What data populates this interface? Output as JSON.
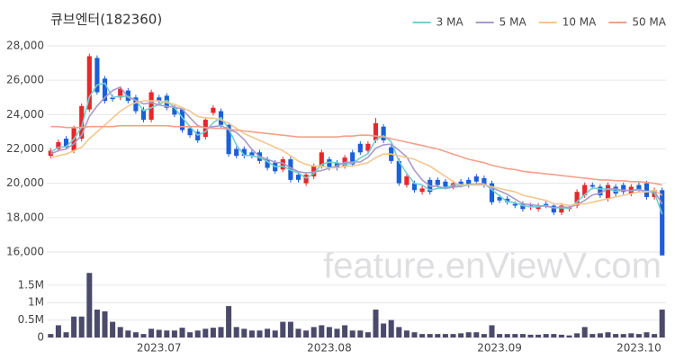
{
  "chart_data": [
    {
      "type": "candlestick",
      "title": "큐브엔터(182360)",
      "watermark": "feature.enViewV.com",
      "up_color": "#e8262c",
      "down_color": "#1b5fd9",
      "grid": true,
      "legend": "top-right",
      "ylim": [
        15580,
        28840
      ],
      "yticks": [
        {
          "value": 16000,
          "label": "16,000"
        },
        {
          "value": 18000,
          "label": "18,000"
        },
        {
          "value": 20000,
          "label": "20,000"
        },
        {
          "value": 22000,
          "label": "22,000"
        },
        {
          "value": 24000,
          "label": "24,000"
        },
        {
          "value": 26000,
          "label": "26,000"
        },
        {
          "value": 28000,
          "label": "28,000"
        }
      ],
      "open": [
        21600,
        22000,
        22600,
        21900,
        22600,
        24300,
        27300,
        26100,
        25000,
        25000,
        25400,
        25000,
        24300,
        23700,
        25000,
        25100,
        24400,
        24300,
        23200,
        23000,
        22700,
        24100,
        24200,
        23400,
        22000,
        22000,
        21800,
        21800,
        21400,
        21200,
        20800,
        21400,
        20500,
        20000,
        20400,
        21000,
        21400,
        21200,
        21000,
        21800,
        22300,
        21900,
        22500,
        23300,
        22100,
        21300,
        19900,
        20000,
        19500,
        20200,
        20200,
        20100,
        19800,
        20100,
        20200,
        20400,
        20300,
        20000,
        19200,
        19100,
        18800,
        18800,
        18600,
        18500,
        18800,
        18700,
        18300,
        18500,
        18700,
        19300,
        19900,
        19800,
        19100,
        19800,
        19900,
        19400,
        19900,
        20000,
        19200,
        19600
      ],
      "high": [
        22050,
        22550,
        22750,
        23350,
        24650,
        27550,
        27450,
        26250,
        25150,
        25650,
        25550,
        25150,
        24450,
        25450,
        25150,
        25250,
        24550,
        24450,
        23350,
        23150,
        23850,
        24550,
        24350,
        23550,
        22150,
        22150,
        21950,
        21950,
        21550,
        21350,
        21550,
        21550,
        20650,
        20650,
        21150,
        21950,
        21550,
        21350,
        21650,
        21950,
        22450,
        22450,
        23800,
        23450,
        22250,
        21450,
        20550,
        20150,
        19850,
        20350,
        20350,
        20250,
        20150,
        20250,
        20350,
        20550,
        20450,
        20150,
        19350,
        19250,
        18950,
        18950,
        18850,
        18850,
        18950,
        18850,
        18850,
        18750,
        19650,
        20050,
        20050,
        19950,
        20050,
        19950,
        20050,
        19950,
        20050,
        20150,
        19750,
        19750
      ],
      "low": [
        21450,
        21850,
        21950,
        21750,
        22450,
        24150,
        25150,
        24650,
        24750,
        24850,
        24650,
        24050,
        23550,
        23550,
        24650,
        24250,
        23850,
        22950,
        22650,
        22350,
        22550,
        23950,
        23250,
        21550,
        21450,
        21450,
        21450,
        21150,
        20750,
        20550,
        20650,
        20050,
        20050,
        19850,
        20250,
        20850,
        20750,
        20750,
        20850,
        20950,
        21650,
        21750,
        22350,
        22350,
        21150,
        19850,
        19750,
        19450,
        19350,
        19350,
        19750,
        19650,
        19650,
        19750,
        19750,
        19950,
        19750,
        18750,
        18850,
        18750,
        18550,
        18350,
        18450,
        18350,
        18550,
        18150,
        18150,
        18350,
        18550,
        19150,
        19650,
        19150,
        18950,
        19250,
        19350,
        19250,
        19450,
        19050,
        19050,
        15800
      ],
      "close": [
        21900,
        22400,
        22100,
        23200,
        24500,
        27400,
        25300,
        24800,
        24900,
        25500,
        24800,
        24200,
        23700,
        25300,
        24800,
        24400,
        24000,
        23100,
        22800,
        22500,
        23700,
        24400,
        23400,
        21700,
        21600,
        21600,
        21600,
        21300,
        20900,
        20700,
        21400,
        20200,
        20200,
        20500,
        21000,
        21800,
        20900,
        20900,
        21500,
        21100,
        21800,
        22300,
        23500,
        22500,
        21300,
        20000,
        20400,
        19600,
        19700,
        19500,
        19900,
        19800,
        20000,
        19900,
        19900,
        20100,
        19900,
        18900,
        19000,
        18900,
        18700,
        18500,
        18700,
        18700,
        18700,
        18300,
        18700,
        18600,
        19500,
        19900,
        19800,
        19300,
        19900,
        19400,
        19500,
        19800,
        19600,
        19200,
        19600,
        15800
      ],
      "series": [
        {
          "name": "3 MA",
          "color": "#6fd0d0",
          "values": [
            21800,
            22100,
            22130,
            22570,
            23270,
            25030,
            25730,
            25830,
            25000,
            25070,
            25070,
            24830,
            24230,
            24400,
            24600,
            24830,
            24400,
            23830,
            23300,
            22800,
            23000,
            23530,
            23830,
            23170,
            22230,
            21630,
            21600,
            21500,
            21270,
            20970,
            21000,
            20770,
            20600,
            20300,
            20570,
            21100,
            21230,
            21200,
            21100,
            21170,
            21470,
            21730,
            22530,
            22770,
            22430,
            21270,
            20570,
            20000,
            19900,
            19600,
            19700,
            19730,
            19900,
            19900,
            19930,
            19970,
            19970,
            19630,
            19270,
            18930,
            18870,
            18700,
            18630,
            18630,
            18700,
            18570,
            18570,
            18530,
            18930,
            19330,
            19730,
            19670,
            19670,
            19530,
            19600,
            19570,
            19630,
            19530,
            19470,
            18200
          ]
        },
        {
          "name": "5 MA",
          "color": "#a99bc9",
          "values": [
            21700,
            21900,
            22000,
            22300,
            22800,
            23900,
            24500,
            25000,
            25400,
            25600,
            25000,
            24840,
            24620,
            24700,
            24560,
            24480,
            24440,
            24320,
            23820,
            23360,
            23220,
            23300,
            23360,
            23140,
            22960,
            22540,
            21980,
            21560,
            21400,
            21220,
            21180,
            20900,
            20680,
            20600,
            20660,
            20740,
            20880,
            21020,
            21220,
            21240,
            21240,
            21520,
            22040,
            22240,
            22280,
            21920,
            21540,
            20760,
            20200,
            19840,
            19820,
            19700,
            19780,
            19820,
            19900,
            19920,
            19960,
            19740,
            19560,
            19360,
            19080,
            18800,
            18760,
            18700,
            18660,
            18580,
            18620,
            18600,
            18760,
            19000,
            19320,
            19420,
            19680,
            19660,
            19580,
            19580,
            19640,
            19500,
            19540,
            18800
          ]
        },
        {
          "name": "10 MA",
          "color": "#f3c78d",
          "values": [
            21500,
            21600,
            21700,
            21900,
            22100,
            22600,
            23000,
            23400,
            23800,
            24200,
            24500,
            24700,
            24800,
            24800,
            24800,
            24700,
            24600,
            24400,
            24200,
            23900,
            23800,
            23800,
            23700,
            23500,
            23200,
            22900,
            22700,
            22500,
            22300,
            22100,
            21900,
            21600,
            21300,
            21100,
            21000,
            21000,
            20900,
            20900,
            21000,
            21000,
            21100,
            21200,
            21500,
            21700,
            21700,
            21600,
            21500,
            21400,
            21200,
            21000,
            20700,
            20400,
            20100,
            19900,
            19900,
            19900,
            19900,
            19800,
            19700,
            19600,
            19500,
            19300,
            19200,
            19100,
            19000,
            18800,
            18800,
            18700,
            18800,
            18800,
            18900,
            19000,
            19100,
            19200,
            19300,
            19400,
            19500,
            19500,
            19600,
            19300
          ]
        },
        {
          "name": "50 MA",
          "color": "#f3a08b",
          "values": [
            23300,
            23300,
            23250,
            23250,
            23250,
            23300,
            23300,
            23300,
            23300,
            23350,
            23350,
            23350,
            23350,
            23350,
            23350,
            23350,
            23300,
            23300,
            23300,
            23300,
            23250,
            23200,
            23200,
            23150,
            23100,
            23050,
            23000,
            22950,
            22900,
            22850,
            22800,
            22750,
            22700,
            22700,
            22700,
            22700,
            22700,
            22700,
            22750,
            22750,
            22800,
            22800,
            22750,
            22700,
            22600,
            22500,
            22400,
            22300,
            22200,
            22100,
            22000,
            21850,
            21700,
            21550,
            21400,
            21300,
            21200,
            21050,
            20950,
            20850,
            20800,
            20700,
            20650,
            20600,
            20550,
            20500,
            20450,
            20400,
            20350,
            20300,
            20250,
            20200,
            20200,
            20150,
            20150,
            20100,
            20100,
            20050,
            20000,
            19900
          ]
        }
      ]
    },
    {
      "type": "bar",
      "color": "#4b4a6b",
      "grid": true,
      "ylim": [
        0,
        1960000
      ],
      "yticks": [
        0,
        {
          "value": 500000,
          "label": "0.5M"
        },
        {
          "value": 1000000,
          "label": "1M"
        },
        {
          "value": 1500000,
          "label": "1.5M"
        }
      ],
      "categories": [
        null,
        null,
        null,
        null,
        null,
        null,
        null,
        null,
        null,
        null,
        null,
        null,
        null,
        null,
        "2023.07",
        null,
        null,
        null,
        null,
        null,
        null,
        null,
        null,
        null,
        null,
        null,
        null,
        null,
        null,
        null,
        null,
        null,
        null,
        null,
        null,
        null,
        "2023.08",
        null,
        null,
        null,
        null,
        null,
        null,
        null,
        null,
        null,
        null,
        null,
        null,
        null,
        null,
        null,
        null,
        null,
        null,
        null,
        null,
        null,
        "2023.09",
        null,
        null,
        null,
        null,
        null,
        null,
        null,
        null,
        null,
        null,
        null,
        null,
        null,
        null,
        null,
        null,
        null,
        "2023.10",
        null,
        null,
        null
      ],
      "values": [
        100000,
        350000,
        150000,
        600000,
        600000,
        1850000,
        800000,
        750000,
        450000,
        300000,
        200000,
        150000,
        100000,
        250000,
        220000,
        200000,
        200000,
        280000,
        150000,
        200000,
        250000,
        280000,
        300000,
        900000,
        300000,
        250000,
        200000,
        200000,
        250000,
        200000,
        450000,
        450000,
        250000,
        200000,
        300000,
        350000,
        300000,
        250000,
        350000,
        200000,
        200000,
        150000,
        800000,
        400000,
        500000,
        300000,
        200000,
        150000,
        100000,
        100000,
        100000,
        100000,
        100000,
        120000,
        150000,
        150000,
        100000,
        350000,
        100000,
        100000,
        100000,
        100000,
        80000,
        80000,
        100000,
        100000,
        80000,
        60000,
        120000,
        300000,
        100000,
        120000,
        150000,
        100000,
        100000,
        120000,
        100000,
        150000,
        100000,
        800000
      ]
    }
  ]
}
